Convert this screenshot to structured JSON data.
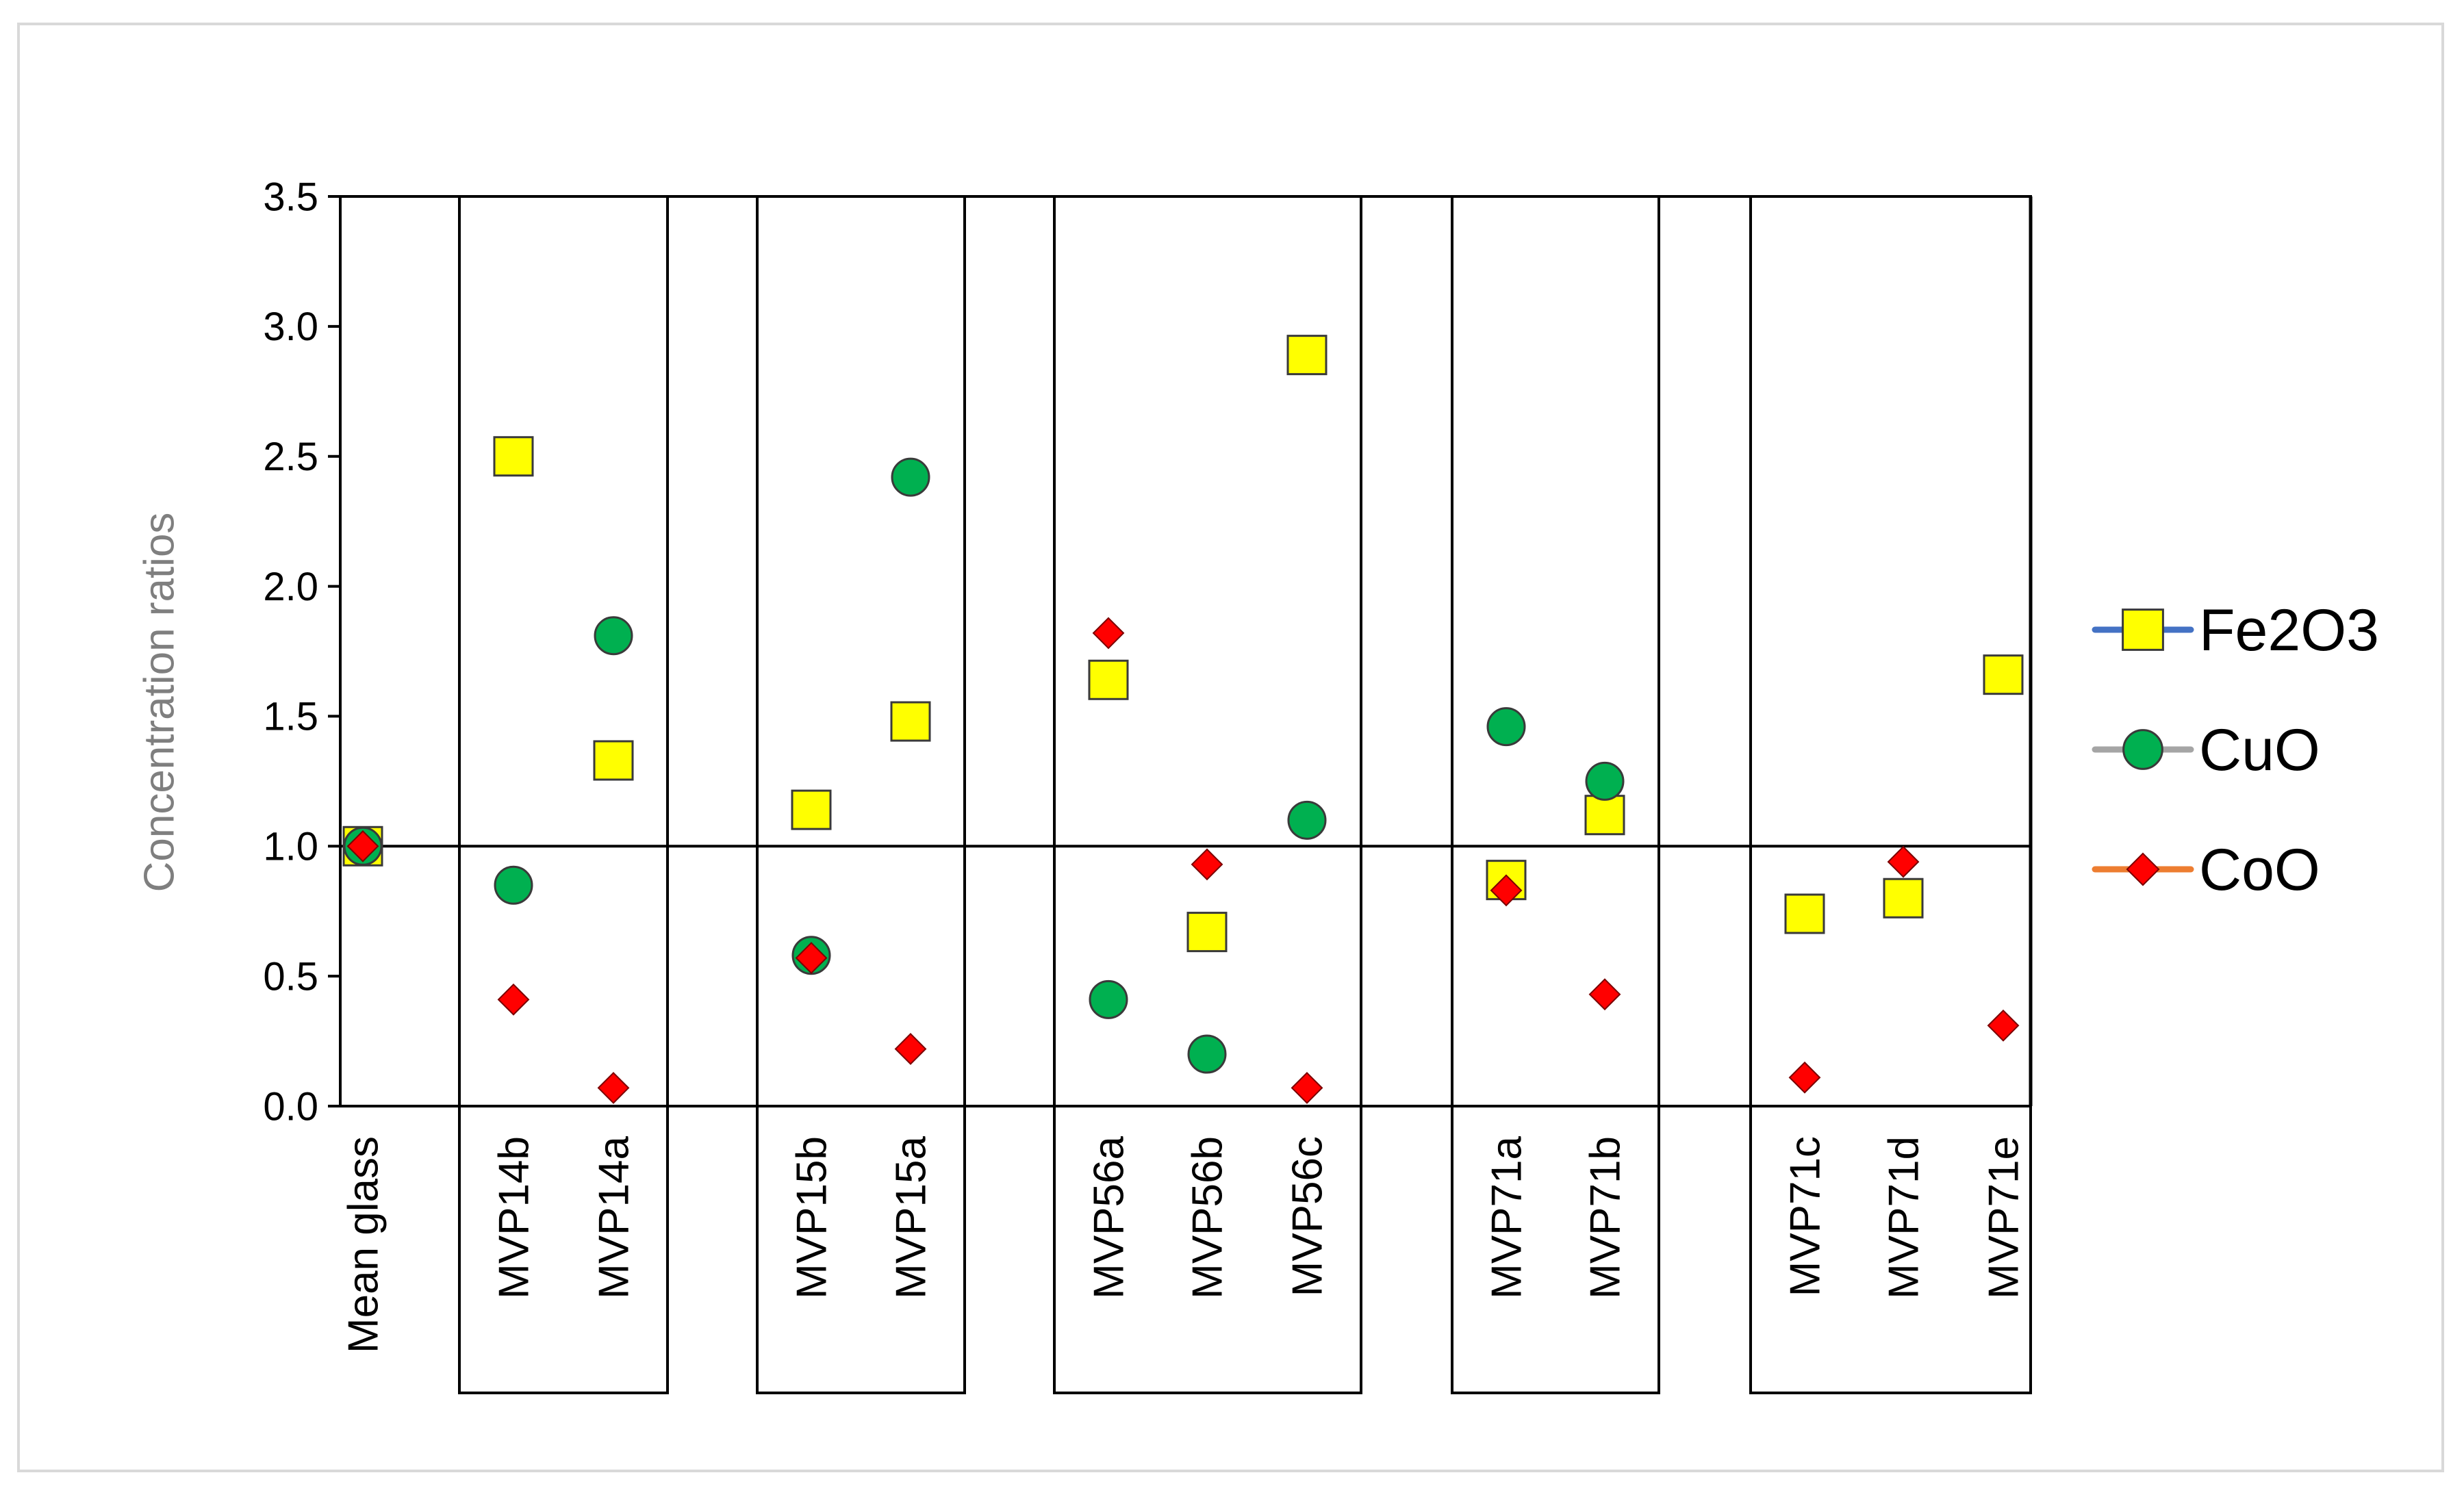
{
  "chart_data": {
    "type": "scatter",
    "title": "",
    "xlabel": "",
    "ylabel": "Concentration ratios",
    "ylim": [
      0,
      3.5
    ],
    "yticks": [
      "0.0",
      "0.5",
      "1.0",
      "1.5",
      "2.0",
      "2.5",
      "3.0",
      "3.5"
    ],
    "reference_line": 1.0,
    "categories": [
      "Mean glass",
      "MVP14b",
      "MVP14a",
      "MVP15b",
      "MVP15a",
      "MVP56a",
      "MVP56b",
      "MVP56c",
      "MVP71a",
      "MVP71b",
      "MVP71c",
      "MVP71d",
      "MVP71e"
    ],
    "groups": [
      {
        "from": "MVP14b",
        "to": "MVP14a"
      },
      {
        "from": "MVP15b",
        "to": "MVP15a"
      },
      {
        "from": "MVP56a",
        "to": "MVP56c"
      },
      {
        "from": "MVP71a",
        "to": "MVP71b"
      },
      {
        "from": "MVP71c",
        "to": "MVP71e"
      }
    ],
    "series": [
      {
        "name": "Fe2O3",
        "marker": "square",
        "fill": "#ffff00",
        "legend_line": "#4472c4",
        "values": [
          1.0,
          2.5,
          1.33,
          1.14,
          1.48,
          1.64,
          0.67,
          2.89,
          0.87,
          1.12,
          0.74,
          0.8,
          1.66
        ]
      },
      {
        "name": "CuO",
        "marker": "circle",
        "fill": "#00b050",
        "legend_line": "#a5a5a5",
        "values": [
          1.0,
          0.85,
          1.81,
          0.58,
          2.42,
          0.41,
          0.2,
          1.1,
          1.46,
          1.25,
          null,
          null,
          null
        ]
      },
      {
        "name": "CoO",
        "marker": "diamond",
        "fill": "#ff0000",
        "legend_line": "#ed7d31",
        "values": [
          1.0,
          0.41,
          0.07,
          0.57,
          0.22,
          1.82,
          0.93,
          0.07,
          0.83,
          0.43,
          0.11,
          0.94,
          0.31
        ]
      }
    ],
    "legend_position": "right"
  }
}
